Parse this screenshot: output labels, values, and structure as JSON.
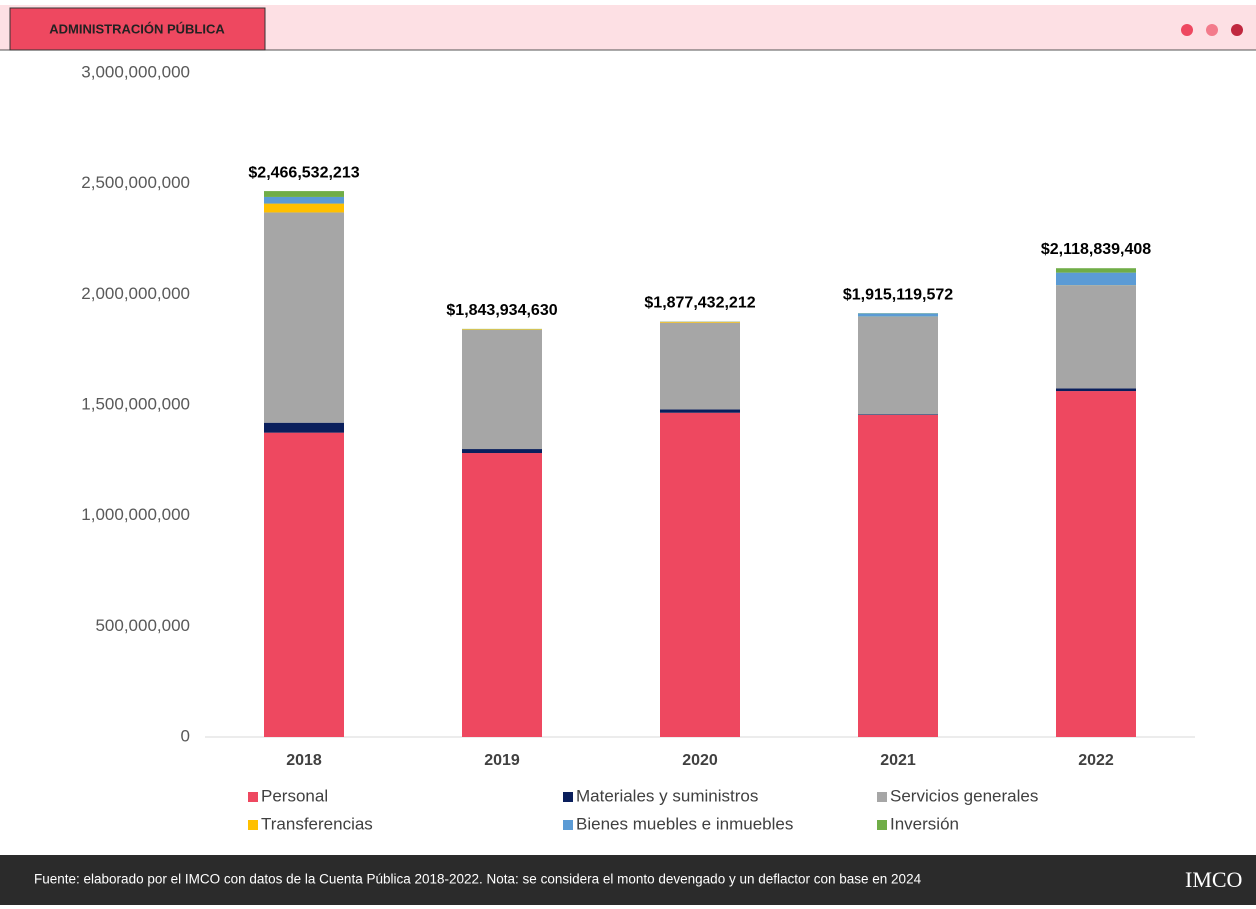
{
  "header": {
    "title": "ADMINISTRACIÓN PÚBLICA"
  },
  "footer": {
    "note": "Fuente: elaborado por el IMCO con datos de la Cuenta Pública 2018-2022. Nota: se considera el monto devengado y un deflactor con base en 2024",
    "logo": "IMCO"
  },
  "chart_data": {
    "type": "stacked_bar",
    "categories": [
      "2018",
      "2019",
      "2020",
      "2021",
      "2022"
    ],
    "series": [
      {
        "name": "Personal",
        "color": "#ee4860",
        "values": [
          1375000000,
          1283000000,
          1465000000,
          1455000000,
          1563000000
        ]
      },
      {
        "name": "Materiales y suministros",
        "color": "#0a1f5c",
        "values": [
          45000000,
          18000000,
          15000000,
          3000000,
          12000000
        ]
      },
      {
        "name": "Servicios generales",
        "color": "#a6a6a6",
        "values": [
          950000000,
          538000000,
          392000000,
          440000000,
          465000000
        ]
      },
      {
        "name": "Transferencias",
        "color": "#ffc000",
        "values": [
          40000000,
          3000000,
          4000000,
          1000000,
          1000000
        ]
      },
      {
        "name": "Bienes muebles e inmuebles",
        "color": "#5b9bd5",
        "values": [
          30000000,
          1000000,
          1000000,
          15000000,
          57000000
        ]
      },
      {
        "name": "Inversión",
        "color": "#70ad47",
        "values": [
          26500000,
          900000,
          400000,
          1000000,
          20000000
        ]
      }
    ],
    "totals": [
      2466532213,
      1843934630,
      1877432212,
      1915119572,
      2118839408
    ],
    "total_labels": [
      "$2,466,532,213",
      "$1,843,934,630",
      "$1,877,432,212",
      "$1,915,119,572",
      "$2,118,839,408"
    ],
    "ylim": [
      0,
      3000000000
    ],
    "yticks": [
      0,
      {
        "value": 500000000,
        "label": "500,000,000"
      },
      {
        "value": 1000000000,
        "label": "1,000,000,000"
      },
      {
        "value": 1500000000,
        "label": "1,500,000,000"
      },
      {
        "value": 2000000000,
        "label": "2,000,000,000"
      },
      {
        "value": 2500000000,
        "label": "2,500,000,000"
      },
      {
        "value": 3000000000,
        "label": "3,000,000,000"
      }
    ],
    "grid": false
  }
}
